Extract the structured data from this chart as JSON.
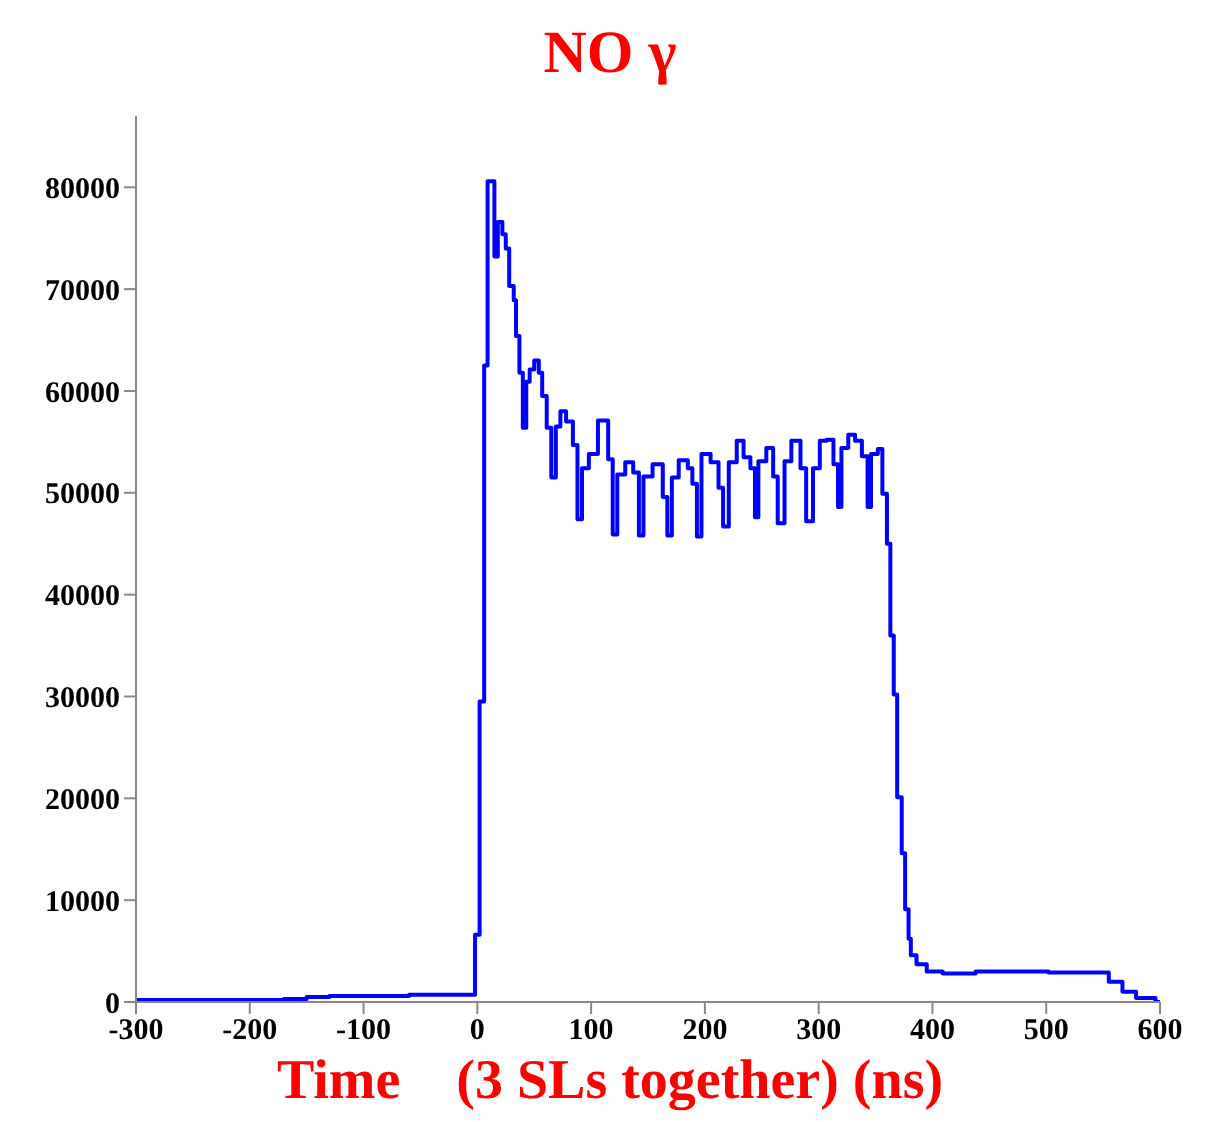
{
  "chart_data": {
    "type": "histogram",
    "title": "NO γ",
    "xlabel": "Time    (3 SLs together) (ns)",
    "color": "#0000ff",
    "bins": [
      -300,
      -170,
      -150,
      -130,
      -60,
      -2,
      2,
      6,
      9,
      15,
      18,
      22,
      25,
      28,
      32,
      34,
      37,
      40,
      43,
      46,
      50,
      54,
      57,
      61,
      65,
      69,
      73,
      78,
      84,
      88,
      92,
      98,
      106,
      115,
      119,
      123,
      130,
      137,
      142,
      146,
      154,
      163,
      167,
      171,
      177,
      185,
      189,
      193,
      197,
      205,
      212,
      216,
      221,
      228,
      234,
      240,
      244,
      247,
      254,
      260,
      264,
      270,
      276,
      284,
      289,
      295,
      301,
      307,
      313,
      317,
      320,
      326,
      332,
      338,
      343,
      346,
      352,
      356,
      360,
      363,
      366,
      369,
      373,
      376,
      379,
      381,
      386,
      395,
      409,
      438,
      502,
      555,
      567,
      579,
      596,
      600
    ],
    "values": [
      200,
      300,
      500,
      600,
      700,
      6600,
      29500,
      62500,
      80600,
      73200,
      76600,
      75400,
      74000,
      70300,
      68900,
      65400,
      61800,
      56400,
      60900,
      62100,
      63000,
      61800,
      59500,
      56400,
      51500,
      56500,
      58000,
      57000,
      54700,
      47400,
      52400,
      53800,
      57100,
      53300,
      45900,
      51800,
      53000,
      52000,
      45800,
      51600,
      52800,
      49600,
      45800,
      51500,
      53200,
      52400,
      50900,
      45700,
      53800,
      53000,
      50500,
      46700,
      53000,
      55100,
      53500,
      52400,
      47600,
      53100,
      54400,
      51600,
      47000,
      53100,
      55100,
      52400,
      47200,
      52400,
      55100,
      55200,
      52800,
      48600,
      54400,
      55700,
      55100,
      53600,
      48600,
      53800,
      54300,
      49900,
      45000,
      36000,
      30200,
      20100,
      14600,
      9100,
      6200,
      4600,
      3700,
      3000,
      2800,
      3000,
      2900,
      2000,
      1000,
      400,
      0
    ],
    "xlim": [
      -300,
      600
    ],
    "xticks": [
      -300,
      -200,
      -100,
      0,
      100,
      200,
      300,
      400,
      500,
      600
    ],
    "ylim": [
      0,
      87000
    ],
    "yticks": [
      0,
      10000,
      20000,
      30000,
      40000,
      50000,
      60000,
      70000,
      80000
    ],
    "grid": false,
    "legend": false
  }
}
